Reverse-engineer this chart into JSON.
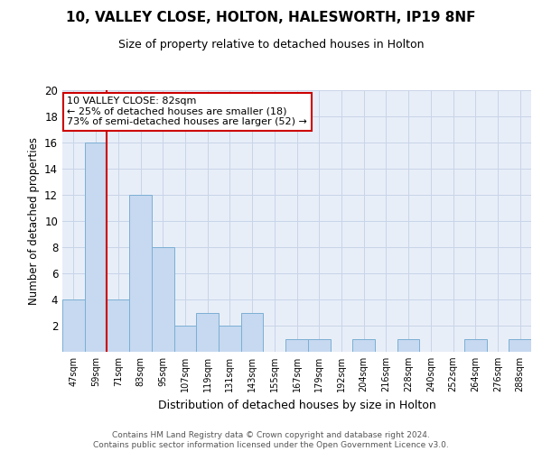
{
  "title1": "10, VALLEY CLOSE, HOLTON, HALESWORTH, IP19 8NF",
  "title2": "Size of property relative to detached houses in Holton",
  "xlabel": "Distribution of detached houses by size in Holton",
  "ylabel": "Number of detached properties",
  "categories": [
    "47sqm",
    "59sqm",
    "71sqm",
    "83sqm",
    "95sqm",
    "107sqm",
    "119sqm",
    "131sqm",
    "143sqm",
    "155sqm",
    "167sqm",
    "179sqm",
    "192sqm",
    "204sqm",
    "216sqm",
    "228sqm",
    "240sqm",
    "252sqm",
    "264sqm",
    "276sqm",
    "288sqm"
  ],
  "values": [
    4,
    16,
    4,
    12,
    8,
    2,
    3,
    2,
    3,
    0,
    1,
    1,
    0,
    1,
    0,
    1,
    0,
    0,
    1,
    0,
    1
  ],
  "bar_color": "#c6d9f0",
  "bar_edge_color": "#7bafd4",
  "vline_x": 1.5,
  "vline_color": "#cc0000",
  "annotation_text": "10 VALLEY CLOSE: 82sqm\n← 25% of detached houses are smaller (18)\n73% of semi-detached houses are larger (52) →",
  "annotation_box_color": "#ffffff",
  "annotation_box_edge_color": "#cc0000",
  "ylim": [
    0,
    20
  ],
  "yticks": [
    0,
    2,
    4,
    6,
    8,
    10,
    12,
    14,
    16,
    18,
    20
  ],
  "grid_color": "#c8d4e8",
  "background_color": "#e8eef8",
  "footer": "Contains HM Land Registry data © Crown copyright and database right 2024.\nContains public sector information licensed under the Open Government Licence v3.0."
}
